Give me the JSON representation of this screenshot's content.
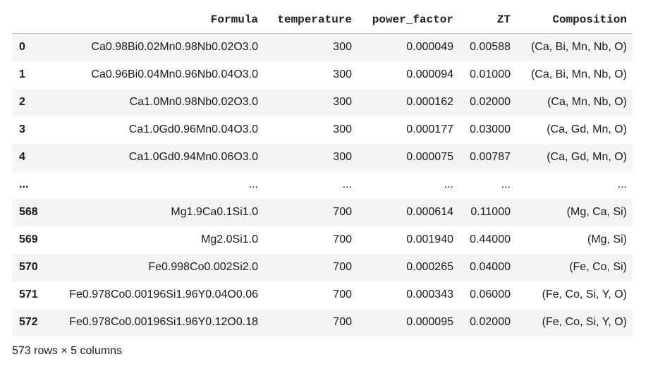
{
  "table": {
    "columns": [
      "",
      "Formula",
      "temperature",
      "power_factor",
      "ZT",
      "Composition"
    ],
    "rows": [
      {
        "index": "0",
        "formula": "Ca0.98Bi0.02Mn0.98Nb0.02O3.0",
        "temperature": "300",
        "power_factor": "0.000049",
        "zt": "0.00588",
        "composition": "(Ca, Bi, Mn, Nb, O)"
      },
      {
        "index": "1",
        "formula": "Ca0.96Bi0.04Mn0.96Nb0.04O3.0",
        "temperature": "300",
        "power_factor": "0.000094",
        "zt": "0.01000",
        "composition": "(Ca, Bi, Mn, Nb, O)"
      },
      {
        "index": "2",
        "formula": "Ca1.0Mn0.98Nb0.02O3.0",
        "temperature": "300",
        "power_factor": "0.000162",
        "zt": "0.02000",
        "composition": "(Ca, Mn, Nb, O)"
      },
      {
        "index": "3",
        "formula": "Ca1.0Gd0.96Mn0.04O3.0",
        "temperature": "300",
        "power_factor": "0.000177",
        "zt": "0.03000",
        "composition": "(Ca, Gd, Mn, O)"
      },
      {
        "index": "4",
        "formula": "Ca1.0Gd0.94Mn0.06O3.0",
        "temperature": "300",
        "power_factor": "0.000075",
        "zt": "0.00787",
        "composition": "(Ca, Gd, Mn, O)"
      },
      {
        "index": "...",
        "formula": "...",
        "temperature": "...",
        "power_factor": "...",
        "zt": "...",
        "composition": "..."
      },
      {
        "index": "568",
        "formula": "Mg1.9Ca0.1Si1.0",
        "temperature": "700",
        "power_factor": "0.000614",
        "zt": "0.11000",
        "composition": "(Mg, Ca, Si)"
      },
      {
        "index": "569",
        "formula": "Mg2.0Si1.0",
        "temperature": "700",
        "power_factor": "0.001940",
        "zt": "0.44000",
        "composition": "(Mg, Si)"
      },
      {
        "index": "570",
        "formula": "Fe0.998Co0.002Si2.0",
        "temperature": "700",
        "power_factor": "0.000265",
        "zt": "0.04000",
        "composition": "(Fe, Co, Si)"
      },
      {
        "index": "571",
        "formula": "Fe0.978Co0.00196Si1.96Y0.04O0.06",
        "temperature": "700",
        "power_factor": "0.000343",
        "zt": "0.06000",
        "composition": "(Fe, Co, Si, Y, O)"
      },
      {
        "index": "572",
        "formula": "Fe0.978Co0.00196Si1.96Y0.12O0.18",
        "temperature": "700",
        "power_factor": "0.000095",
        "zt": "0.02000",
        "composition": "(Fe, Co, Si, Y, O)"
      }
    ]
  },
  "footer": "573 rows × 5 columns",
  "colors": {
    "stripe": "#f4f4f4",
    "header_rule": "#c8c8c8",
    "text": "#1a1a1a"
  }
}
